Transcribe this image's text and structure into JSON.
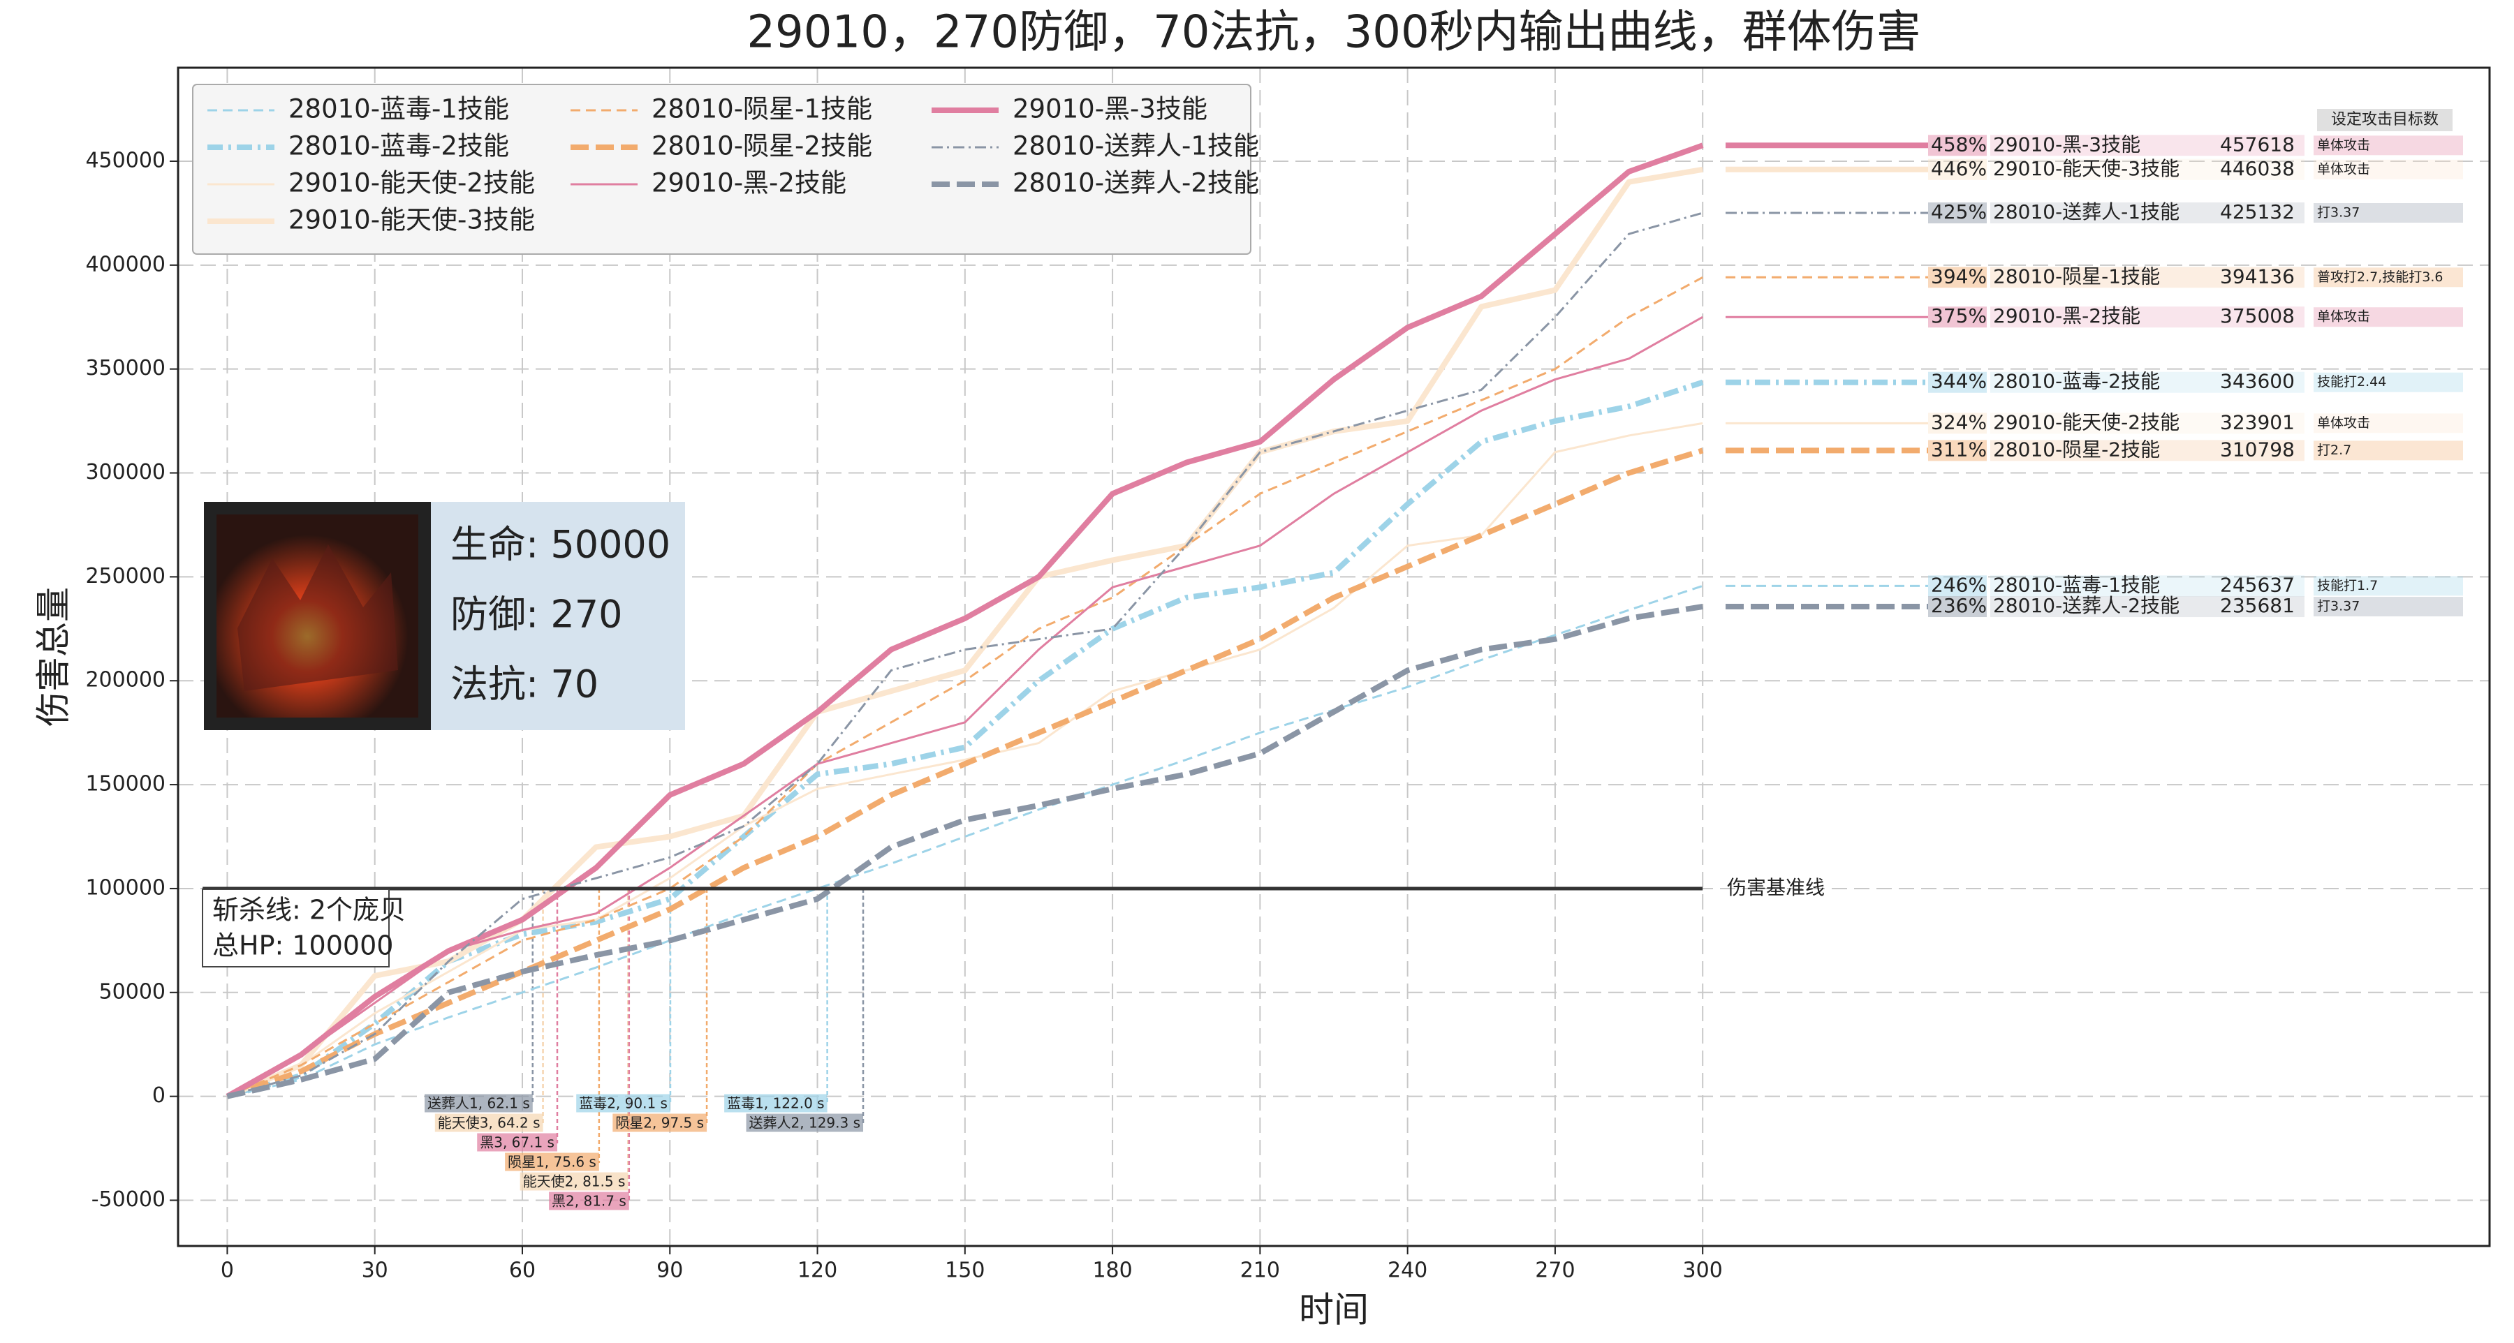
{
  "chart_data": {
    "type": "line",
    "title": "29010，270防御，70法抗，300秒内输出曲线，群体伤害",
    "xlabel": "时间",
    "ylabel": "伤害总量",
    "xlim": [
      -10,
      460
    ],
    "ylim": [
      -72000,
      495000
    ],
    "xticks": [
      0,
      30,
      60,
      90,
      120,
      150,
      180,
      210,
      240,
      270,
      300
    ],
    "yticks": [
      -50000,
      0,
      50000,
      100000,
      150000,
      200000,
      250000,
      300000,
      350000,
      400000,
      450000
    ],
    "grid": true,
    "legend": "upper left",
    "x": [
      0,
      15,
      30,
      45,
      60,
      75,
      90,
      105,
      120,
      135,
      150,
      165,
      180,
      195,
      210,
      225,
      240,
      255,
      270,
      285,
      300
    ],
    "series": [
      {
        "name": "28010-蓝毒-1技能",
        "color": "#9dd3e8",
        "linestyle": "dashed",
        "width": "thin",
        "share_label": "246%",
        "note": "技能打1.7",
        "values": [
          0,
          8000,
          25000,
          38000,
          50000,
          62000,
          75000,
          88000,
          100000,
          112000,
          125000,
          138000,
          150000,
          162000,
          175000,
          186000,
          197000,
          210000,
          222000,
          234000,
          245637
        ]
      },
      {
        "name": "28010-蓝毒-2技能",
        "color": "#9dd3e8",
        "linestyle": "dashdot",
        "width": "thick",
        "share_label": "344%",
        "note": "技能打2.44",
        "values": [
          0,
          10000,
          35000,
          65000,
          78000,
          84000,
          95000,
          125000,
          155000,
          160000,
          168000,
          200000,
          225000,
          240000,
          245000,
          252000,
          285000,
          315000,
          325000,
          332000,
          343600
        ]
      },
      {
        "name": "29010-能天使-2技能",
        "color": "#fbe6cf",
        "linestyle": "solid",
        "width": "thin",
        "share_label": "324%",
        "note": "单体攻击",
        "values": [
          0,
          15000,
          40000,
          60000,
          80000,
          85000,
          105000,
          130000,
          148000,
          155000,
          162000,
          170000,
          195000,
          205000,
          215000,
          235000,
          265000,
          270000,
          310000,
          318000,
          323901
        ]
      },
      {
        "name": "29010-能天使-3技能",
        "color": "#fbe6cf",
        "linestyle": "solid",
        "width": "thick",
        "share_label": "446%",
        "note": "单体攻击",
        "values": [
          0,
          15000,
          58000,
          65000,
          85000,
          120000,
          125000,
          135000,
          185000,
          195000,
          205000,
          250000,
          258000,
          265000,
          310000,
          320000,
          325000,
          380000,
          388000,
          440000,
          446038
        ]
      },
      {
        "name": "28010-陨星-1技能",
        "color": "#f2ab6d",
        "linestyle": "dashed",
        "width": "thin",
        "share_label": "394%",
        "note": "普攻打2.7,技能打3.6",
        "values": [
          0,
          15000,
          35000,
          55000,
          75000,
          85000,
          100000,
          125000,
          160000,
          180000,
          200000,
          225000,
          240000,
          265000,
          290000,
          305000,
          320000,
          335000,
          350000,
          375000,
          394136
        ]
      },
      {
        "name": "28010-陨星-2技能",
        "color": "#f2ab6d",
        "linestyle": "dashed",
        "width": "thick",
        "share_label": "311%",
        "note": "打2.7",
        "values": [
          0,
          12000,
          30000,
          45000,
          60000,
          75000,
          90000,
          110000,
          125000,
          145000,
          160000,
          175000,
          190000,
          205000,
          220000,
          240000,
          255000,
          270000,
          285000,
          300000,
          310798
        ]
      },
      {
        "name": "29010-黑-2技能",
        "color": "#e07ea0",
        "linestyle": "solid",
        "width": "thin",
        "share_label": "375%",
        "note": "单体攻击",
        "values": [
          0,
          20000,
          45000,
          70000,
          80000,
          88000,
          110000,
          135000,
          160000,
          170000,
          180000,
          215000,
          245000,
          255000,
          265000,
          290000,
          310000,
          330000,
          345000,
          355000,
          375008
        ]
      },
      {
        "name": "29010-黑-3技能",
        "color": "#e07ea0",
        "linestyle": "solid",
        "width": "thick",
        "share_label": "458%",
        "note": "单体攻击",
        "values": [
          0,
          20000,
          48000,
          70000,
          85000,
          110000,
          145000,
          160000,
          185000,
          215000,
          230000,
          250000,
          290000,
          305000,
          315000,
          345000,
          370000,
          385000,
          415000,
          445000,
          457618
        ]
      },
      {
        "name": "28010-送葬人-1技能",
        "color": "#8a95a5",
        "linestyle": "dashdot",
        "width": "thin",
        "share_label": "425%",
        "note": "打3.37",
        "values": [
          0,
          10000,
          30000,
          65000,
          95000,
          105000,
          115000,
          130000,
          160000,
          205000,
          215000,
          220000,
          225000,
          265000,
          310000,
          320000,
          330000,
          340000,
          375000,
          415000,
          425132
        ]
      },
      {
        "name": "28010-送葬人-2技能",
        "color": "#8a95a5",
        "linestyle": "dashed",
        "width": "thick",
        "share_label": "236%",
        "note": "打3.37",
        "values": [
          0,
          8000,
          18000,
          50000,
          60000,
          68000,
          75000,
          85000,
          95000,
          120000,
          133000,
          140000,
          148000,
          155000,
          165000,
          185000,
          205000,
          215000,
          220000,
          230000,
          235681
        ]
      }
    ],
    "note_header": "设定攻击目标数",
    "baseline": {
      "value": 100000,
      "label": "伤害基准线",
      "box": [
        "斩杀线: 2个庞贝",
        "总HP: 100000"
      ]
    },
    "enemy": [
      "生命: 50000",
      "防御: 270",
      "法抗: 70"
    ],
    "crossings": [
      {
        "x": 62.1,
        "label": "送葬人1, 62.1 s",
        "color": "#8a95a5"
      },
      {
        "x": 64.2,
        "label": "能天使3, 64.2 s",
        "color": "#f5d5b0"
      },
      {
        "x": 67.1,
        "label": "黑3, 67.1 s",
        "color": "#e07ea0"
      },
      {
        "x": 75.6,
        "label": "陨星1, 75.6 s",
        "color": "#f2ab6d"
      },
      {
        "x": 81.5,
        "label": "能天使2, 81.5 s",
        "color": "#f5d5b0"
      },
      {
        "x": 81.7,
        "label": "黑2, 81.7 s",
        "color": "#e07ea0"
      },
      {
        "x": 90.1,
        "label": "蓝毒2, 90.1 s",
        "color": "#9dd3e8"
      },
      {
        "x": 97.5,
        "label": "陨星2, 97.5 s",
        "color": "#f2ab6d"
      },
      {
        "x": 122.0,
        "label": "蓝毒1, 122.0 s",
        "color": "#9dd3e8"
      },
      {
        "x": 129.3,
        "label": "送葬人2, 129.3 s",
        "color": "#8a95a5"
      }
    ]
  }
}
